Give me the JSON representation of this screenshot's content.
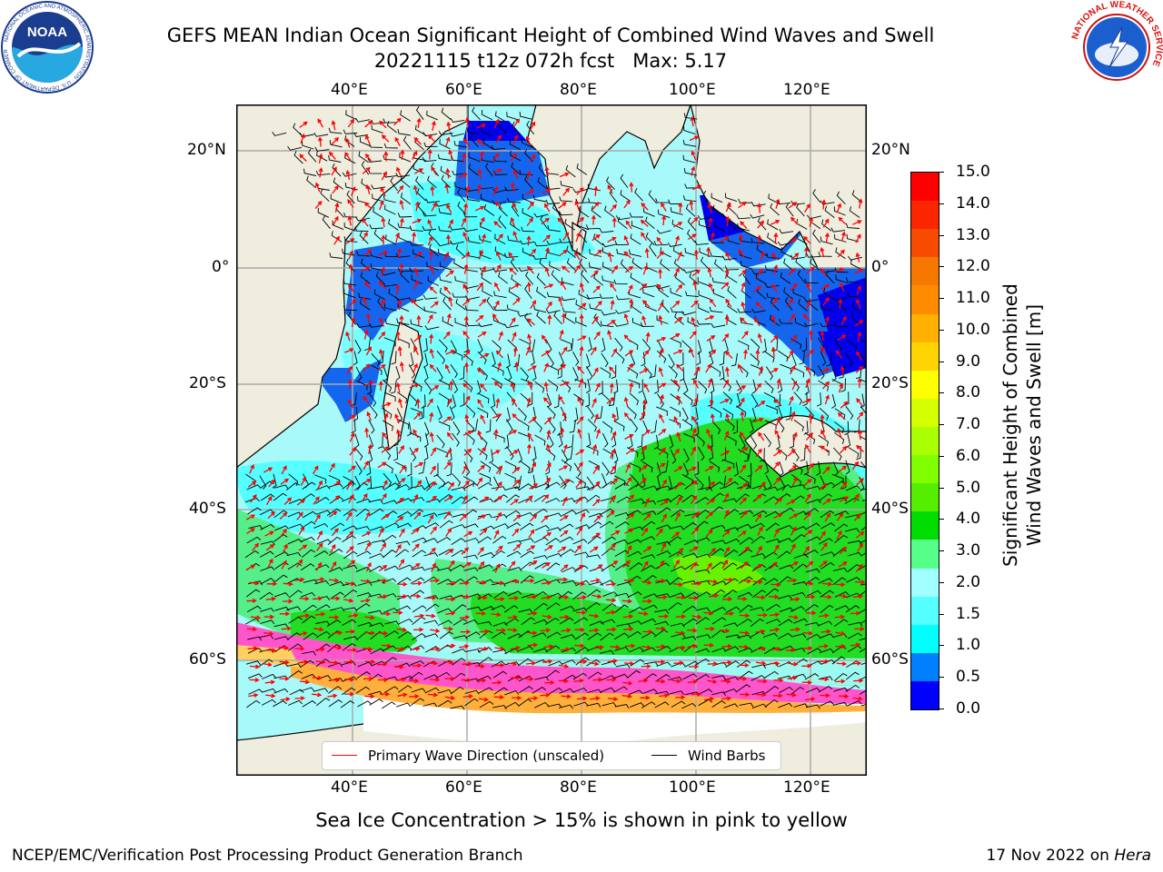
{
  "title": {
    "line1": "GEFS MEAN Indian Ocean Significant Height of Combined Wind Waves and Swell",
    "line2": "20221115 t12z 072h fcst   Max: 5.17"
  },
  "map": {
    "lon_ticks": [
      "40°E",
      "60°E",
      "80°E",
      "100°E",
      "120°E"
    ],
    "lat_ticks": [
      "20°N",
      "0°",
      "20°S",
      "40°S",
      "60°S"
    ],
    "legend": {
      "wave_direction": "Primary Wave Direction (unscaled)",
      "wind_barbs": "Wind Barbs",
      "wave_color": "#ff0000",
      "wind_color": "#000000"
    },
    "land_color": "#efedde"
  },
  "colorbar": {
    "label_line1": "Significant Height of Combined",
    "label_line2": "Wind Waves and Swell [m]",
    "ticks": [
      "15.0",
      "14.0",
      "13.0",
      "12.0",
      "11.0",
      "10.0",
      "9.0",
      "8.0",
      "7.0",
      "6.0",
      "5.0",
      "4.0",
      "3.0",
      "2.0",
      "1.5",
      "1.0",
      "0.5",
      "0.0"
    ],
    "colors_top_to_bottom": [
      "#ff0000",
      "#fb2500",
      "#f74b00",
      "#f77800",
      "#ff8c00",
      "#ffb000",
      "#ffd400",
      "#ffff00",
      "#d4ff00",
      "#aaff00",
      "#7fff00",
      "#55ee00",
      "#00dd00",
      "#55ff88",
      "#a0ffff",
      "#55ffff",
      "#00ffff",
      "#0080ff",
      "#0000ff"
    ]
  },
  "logos": {
    "noaa_text": "NOAA",
    "noaa_ring": "NATIONAL OCEANIC AND ATMOSPHERIC ADMINISTRATION · U.S. DEPARTMENT OF COMMERCE",
    "nws_ring": "NATIONAL WEATHER SERVICE"
  },
  "caption": "Sea Ice Concentration > 15% is shown in pink to yellow",
  "footer": {
    "left": "NCEP/EMC/Verification Post Processing Product Generation Branch",
    "right_prefix": "17 Nov 2022 on ",
    "right_host": "Hera"
  }
}
